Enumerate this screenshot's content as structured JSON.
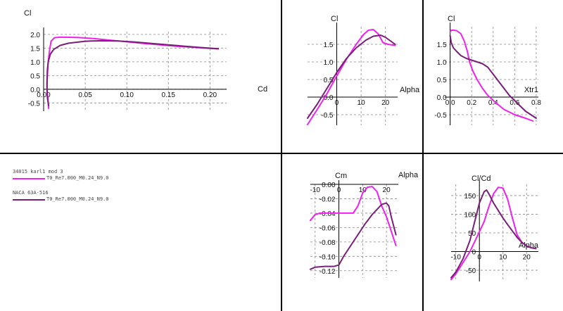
{
  "legend": [
    {
      "name": "34015 karl1 mod 3",
      "label": "T0_Re7.000_M0.24_N9.0",
      "color": "#ee22ee"
    },
    {
      "name": "NACA 63A-516",
      "label": "T0_Re7.000_M0.24_N9.0",
      "color": "#7a1f78"
    }
  ],
  "chart_data": [
    {
      "id": "polar",
      "type": "line",
      "grid": true,
      "xlabel": "Cd",
      "ylabel": "Cl",
      "xlim": [
        0.0,
        0.22
      ],
      "ylim": [
        -0.8,
        2.1
      ],
      "xticks": [
        0.0,
        0.05,
        0.1,
        0.15,
        0.2
      ],
      "xtick_labels": [
        "0.00",
        "0.05",
        "0.10",
        "0.15",
        "0.20"
      ],
      "yticks": [
        -0.5,
        0.0,
        0.5,
        1.0,
        1.5,
        2.0
      ],
      "ytick_labels": [
        "-0.5",
        "0.0",
        "0.5",
        "1.0",
        "1.5",
        "2.0"
      ],
      "series": [
        {
          "name": "34015 karl1 mod 3",
          "color": "#ee22ee",
          "x": [
            0.006,
            0.005,
            0.004,
            0.0045,
            0.0055,
            0.007,
            0.009,
            0.013,
            0.02,
            0.04,
            0.06,
            0.08,
            0.1,
            0.12,
            0.14,
            0.16,
            0.18,
            0.2,
            0.21
          ],
          "y": [
            -0.7,
            -0.3,
            0.0,
            0.5,
            1.0,
            1.4,
            1.75,
            1.88,
            1.9,
            1.89,
            1.85,
            1.79,
            1.73,
            1.67,
            1.62,
            1.57,
            1.53,
            1.49,
            1.47
          ]
        },
        {
          "name": "NACA 63A-516",
          "color": "#7a1f78",
          "x": [
            0.006,
            0.0045,
            0.004,
            0.0045,
            0.0055,
            0.008,
            0.012,
            0.02,
            0.03,
            0.05,
            0.07,
            0.09,
            0.11,
            0.13,
            0.15,
            0.17,
            0.19,
            0.21
          ],
          "y": [
            -0.6,
            -0.3,
            0.2,
            0.7,
            1.0,
            1.28,
            1.45,
            1.6,
            1.68,
            1.75,
            1.77,
            1.76,
            1.72,
            1.67,
            1.62,
            1.57,
            1.52,
            1.48
          ]
        }
      ]
    },
    {
      "id": "cl_alpha",
      "type": "line",
      "grid": true,
      "xlabel": "Alpha",
      "ylabel": "Cl",
      "xlim": [
        -12,
        25
      ],
      "ylim": [
        -0.8,
        2.0
      ],
      "xticks": [
        0,
        10,
        20
      ],
      "xtick_labels": [
        "0",
        "10",
        "20"
      ],
      "yticks": [
        -0.5,
        0.0,
        0.5,
        1.0,
        1.5
      ],
      "ytick_labels": [
        "-0.5",
        "0.0",
        "0.5",
        "1.0",
        "1.5"
      ],
      "series": [
        {
          "name": "34015 karl1 mod 3",
          "color": "#ee22ee",
          "x": [
            -12,
            -8,
            -4,
            0,
            4,
            8,
            11,
            13,
            15,
            17,
            19,
            21,
            23,
            24
          ],
          "y": [
            -0.78,
            -0.35,
            0.1,
            0.6,
            1.08,
            1.5,
            1.78,
            1.9,
            1.92,
            1.8,
            1.55,
            1.5,
            1.48,
            1.47
          ]
        },
        {
          "name": "NACA 63A-516",
          "color": "#7a1f78",
          "x": [
            -12,
            -8,
            -4,
            0,
            4,
            8,
            12,
            15,
            18,
            20,
            22,
            24
          ],
          "y": [
            -0.6,
            -0.2,
            0.25,
            0.7,
            1.1,
            1.4,
            1.62,
            1.73,
            1.76,
            1.7,
            1.6,
            1.5
          ]
        }
      ]
    },
    {
      "id": "cl_xtr",
      "type": "line",
      "grid": true,
      "xlabel": "Xtr1",
      "ylabel": "Cl",
      "xlim": [
        -0.05,
        0.82
      ],
      "ylim": [
        -0.8,
        2.0
      ],
      "xticks": [
        0.0,
        0.2,
        0.4,
        0.6,
        0.8
      ],
      "xtick_labels": [
        "0.0",
        "0.2",
        "0.4",
        "0.6",
        "0.8"
      ],
      "yticks": [
        -0.5,
        0.0,
        0.5,
        1.0,
        1.5
      ],
      "ytick_labels": [
        "-0.5",
        "0.0",
        "0.5",
        "1.0",
        "1.5"
      ],
      "series": [
        {
          "name": "34015 karl1 mod 3",
          "color": "#ee22ee",
          "x": [
            0.0,
            0.01,
            0.03,
            0.06,
            0.1,
            0.13,
            0.16,
            0.18,
            0.21,
            0.25,
            0.3,
            0.35,
            0.42,
            0.5,
            0.6,
            0.7,
            0.77
          ],
          "y": [
            1.85,
            1.9,
            1.9,
            1.89,
            1.8,
            1.6,
            1.3,
            1.0,
            0.75,
            0.5,
            0.25,
            0.05,
            -0.15,
            -0.35,
            -0.5,
            -0.6,
            -0.68
          ]
        },
        {
          "name": "NACA 63A-516",
          "color": "#7a1f78",
          "x": [
            0.0,
            0.01,
            0.03,
            0.06,
            0.1,
            0.15,
            0.2,
            0.25,
            0.3,
            0.35,
            0.4,
            0.45,
            0.5,
            0.55,
            0.6,
            0.65,
            0.7,
            0.75,
            0.8
          ],
          "y": [
            1.75,
            1.55,
            1.4,
            1.3,
            1.18,
            1.1,
            1.05,
            1.0,
            0.95,
            0.85,
            0.65,
            0.45,
            0.25,
            0.05,
            -0.1,
            -0.25,
            -0.4,
            -0.5,
            -0.6
          ]
        }
      ]
    },
    {
      "id": "cm_alpha",
      "type": "line",
      "grid": true,
      "xlabel": "Alpha",
      "ylabel": "Cm",
      "xlim": [
        -12,
        25
      ],
      "ylim": [
        -0.13,
        0.0
      ],
      "xticks": [
        -10,
        0,
        10,
        20
      ],
      "xtick_labels": [
        "-10",
        "0",
        "10",
        "20"
      ],
      "yticks": [
        0.0,
        -0.02,
        -0.04,
        -0.06,
        -0.08,
        -0.1,
        -0.12
      ],
      "ytick_labels": [
        "0.00",
        "-0.02",
        "-0.04",
        "-0.06",
        "-0.08",
        "-0.10",
        "-0.12"
      ],
      "series": [
        {
          "name": "34015 karl1 mod 3",
          "color": "#ee22ee",
          "x": [
            -12,
            -10,
            -8,
            -5,
            0,
            4,
            6,
            8,
            10,
            12,
            14,
            16,
            18,
            20,
            22,
            24
          ],
          "y": [
            -0.05,
            -0.042,
            -0.04,
            -0.04,
            -0.04,
            -0.04,
            -0.04,
            -0.03,
            -0.012,
            -0.004,
            -0.003,
            -0.01,
            -0.03,
            -0.045,
            -0.065,
            -0.085
          ]
        },
        {
          "name": "NACA 63A-516",
          "color": "#7a1f78",
          "x": [
            -12,
            -10,
            -6,
            -2,
            0,
            2,
            5,
            8,
            11,
            14,
            16,
            18,
            20,
            21,
            22,
            24
          ],
          "y": [
            -0.118,
            -0.115,
            -0.114,
            -0.114,
            -0.112,
            -0.1,
            -0.085,
            -0.07,
            -0.055,
            -0.042,
            -0.035,
            -0.028,
            -0.026,
            -0.03,
            -0.045,
            -0.07
          ]
        }
      ]
    },
    {
      "id": "clcd_alpha",
      "type": "line",
      "grid": true,
      "xlabel": "Alpha",
      "ylabel": "Cl/Cd",
      "xlim": [
        -12,
        25
      ],
      "ylim": [
        -80,
        180
      ],
      "xticks": [
        -10,
        0,
        10,
        20
      ],
      "xtick_labels": [
        "-10",
        "0",
        "10",
        "20"
      ],
      "yticks": [
        -50,
        0,
        50,
        100,
        150
      ],
      "ytick_labels": [
        "-50",
        "0",
        "50",
        "100",
        "150"
      ],
      "series": [
        {
          "name": "34015 karl1 mod 3",
          "color": "#ee22ee",
          "x": [
            -12,
            -10,
            -7,
            -4,
            -1,
            2,
            4,
            6,
            8,
            10,
            12,
            14,
            16,
            18,
            20,
            22,
            24
          ],
          "y": [
            -75,
            -60,
            -30,
            0,
            40,
            80,
            120,
            155,
            172,
            170,
            140,
            90,
            45,
            25,
            15,
            10,
            8
          ]
        },
        {
          "name": "NACA 63A-516",
          "color": "#7a1f78",
          "x": [
            -12,
            -10,
            -7,
            -4,
            -2,
            0,
            2,
            3,
            4,
            6,
            8,
            10,
            12,
            14,
            16,
            18,
            20,
            22,
            24
          ],
          "y": [
            -70,
            -55,
            -20,
            30,
            80,
            130,
            160,
            165,
            155,
            130,
            110,
            90,
            72,
            55,
            38,
            25,
            15,
            10,
            8
          ]
        }
      ]
    }
  ]
}
